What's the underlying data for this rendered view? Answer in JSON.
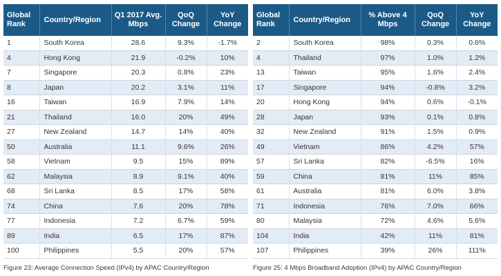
{
  "left": {
    "headers": [
      "Global Rank",
      "Country/Region",
      "Q1 2017 Avg. Mbps",
      "QoQ Change",
      "YoY Change"
    ],
    "rows": [
      [
        "1",
        "South Korea",
        "28.6",
        "9.3%",
        "-1.7%"
      ],
      [
        "4",
        "Hong Kong",
        "21.9",
        "-0.2%",
        "10%"
      ],
      [
        "7",
        "Singapore",
        "20.3",
        "0.8%",
        "23%"
      ],
      [
        "8",
        "Japan",
        "20.2",
        "3.1%",
        "11%"
      ],
      [
        "16",
        "Taiwan",
        "16.9",
        "7.9%",
        "14%"
      ],
      [
        "21",
        "Thailand",
        "16.0",
        "20%",
        "49%"
      ],
      [
        "27",
        "New Zealand",
        "14.7",
        "14%",
        "40%"
      ],
      [
        "50",
        "Australia",
        "11.1",
        "9.6%",
        "26%"
      ],
      [
        "58",
        "Vietnam",
        "9.5",
        "15%",
        "89%"
      ],
      [
        "62",
        "Malaysia",
        "8.9",
        "9.1%",
        "40%"
      ],
      [
        "68",
        "Sri Lanka",
        "8.5",
        "17%",
        "58%"
      ],
      [
        "74",
        "China",
        "7.6",
        "20%",
        "78%"
      ],
      [
        "77",
        "Indonesia",
        "7.2",
        "6.7%",
        "59%"
      ],
      [
        "89",
        "India",
        "6.5",
        "17%",
        "87%"
      ],
      [
        "100",
        "Philippines",
        "5.5",
        "20%",
        "57%"
      ]
    ],
    "caption": "Figure 23: Average Connection Speed (IPv4) by APAC Country/Region"
  },
  "right": {
    "headers": [
      "Global Rank",
      "Country/Region",
      "% Above 4 Mbps",
      "QoQ Change",
      "YoY Change"
    ],
    "rows": [
      [
        "2",
        "South Korea",
        "98%",
        "0.3%",
        "0.6%"
      ],
      [
        "4",
        "Thailand",
        "97%",
        "1.0%",
        "1.2%"
      ],
      [
        "13",
        "Taiwan",
        "95%",
        "1.6%",
        "2.4%"
      ],
      [
        "17",
        "Singapore",
        "94%",
        "-0.8%",
        "3.2%"
      ],
      [
        "20",
        "Hong Kong",
        "94%",
        "0.6%",
        "-0.1%"
      ],
      [
        "28",
        "Japan",
        "93%",
        "0.1%",
        "0.8%"
      ],
      [
        "32",
        "New Zealand",
        "91%",
        "1.5%",
        "0.9%"
      ],
      [
        "49",
        "Vietnam",
        "86%",
        "4.2%",
        "57%"
      ],
      [
        "57",
        "Sri Lanka",
        "82%",
        "-6.5%",
        "16%"
      ],
      [
        "59",
        "China",
        "81%",
        "11%",
        "85%"
      ],
      [
        "61",
        "Australia",
        "81%",
        "6.0%",
        "3.8%"
      ],
      [
        "71",
        "Indonesia",
        "76%",
        "7.0%",
        "66%"
      ],
      [
        "80",
        "Malaysia",
        "72%",
        "4.6%",
        "5.6%"
      ],
      [
        "104",
        "India",
        "42%",
        "11%",
        "81%"
      ],
      [
        "107",
        "Philippines",
        "39%",
        "26%",
        "111%"
      ]
    ],
    "caption": "Figure 25: 4 Mbps Broadband Adoption (IPv4) by APAC Country/Region"
  }
}
